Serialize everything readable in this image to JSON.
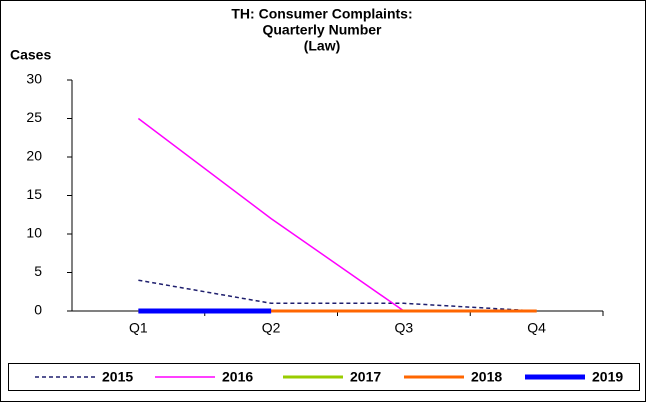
{
  "chart_data": {
    "type": "line",
    "title": [
      "TH: Consumer Complaints:",
      "Quarterly Number",
      "(Law)"
    ],
    "y_label": "Cases",
    "categories": [
      "Q1",
      "Q2",
      "Q3",
      "Q4"
    ],
    "series": [
      {
        "name": "2015",
        "color": "#1f1f6e",
        "line_style": "dashed",
        "values": [
          4,
          1,
          1,
          0
        ]
      },
      {
        "name": "2016",
        "color": "#ff00ff",
        "values": [
          25,
          12,
          0,
          0
        ]
      },
      {
        "name": "2017",
        "color": "#99cc00",
        "values": [
          0,
          0,
          0,
          0
        ]
      },
      {
        "name": "2018",
        "color": "#ff6600",
        "values": [
          0,
          0,
          0,
          0
        ]
      },
      {
        "name": "2019",
        "color": "#0000ff",
        "values": [
          0,
          0,
          null,
          null
        ]
      }
    ],
    "ylim": [
      0,
      30
    ],
    "yticks": [
      0,
      5,
      10,
      15,
      20,
      25,
      30
    ],
    "grid": false,
    "legend": "bottom"
  }
}
